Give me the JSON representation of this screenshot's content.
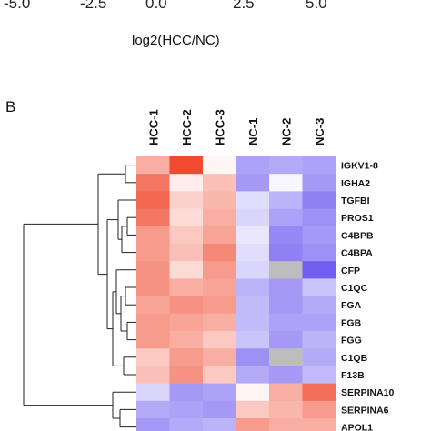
{
  "top_axis": {
    "ticks": [
      "-5.0",
      "-2.5",
      "0.0",
      "2.5",
      "5.0"
    ],
    "xlabel": "log2(HCC/NC)"
  },
  "panel_label": "B",
  "chart_data": {
    "type": "heatmap",
    "columns": [
      "HCC-1",
      "HCC-2",
      "HCC-3",
      "NC-1",
      "NC-2",
      "NC-3"
    ],
    "rows": [
      "IGKV1-8",
      "IGHA2",
      "TGFBI",
      "PROS1",
      "C4BPB",
      "C4BPA",
      "CFP",
      "C1QC",
      "FGA",
      "FGB",
      "FGG",
      "C1QB",
      "F13B",
      "SERPINA10",
      "SERPINA6",
      "APOL1"
    ],
    "values": [
      [
        0.45,
        1.0,
        0.05,
        -0.55,
        -0.5,
        -0.55
      ],
      [
        0.75,
        0.1,
        0.35,
        -0.6,
        -0.05,
        -0.6
      ],
      [
        0.85,
        0.25,
        0.4,
        -0.2,
        -0.45,
        -0.75
      ],
      [
        0.75,
        0.2,
        0.45,
        -0.25,
        -0.55,
        -0.65
      ],
      [
        0.55,
        0.3,
        0.5,
        -0.15,
        -0.7,
        -0.6
      ],
      [
        0.55,
        0.35,
        0.65,
        -0.2,
        -0.75,
        -0.65
      ],
      [
        0.6,
        0.2,
        0.55,
        -0.25,
        null,
        -0.95
      ],
      [
        0.6,
        0.45,
        0.5,
        -0.45,
        -0.6,
        -0.35
      ],
      [
        0.5,
        0.6,
        0.55,
        -0.4,
        -0.6,
        -0.5
      ],
      [
        0.55,
        0.5,
        0.45,
        -0.4,
        -0.55,
        -0.55
      ],
      [
        0.55,
        0.45,
        0.3,
        -0.35,
        -0.6,
        -0.45
      ],
      [
        0.3,
        0.55,
        0.45,
        -0.65,
        null,
        -0.5
      ],
      [
        0.35,
        0.6,
        0.3,
        -0.5,
        -0.6,
        -0.4
      ],
      [
        -0.25,
        -0.6,
        -0.55,
        0.05,
        0.45,
        0.8
      ],
      [
        -0.5,
        -0.55,
        -0.6,
        0.3,
        0.4,
        0.55
      ],
      [
        -0.6,
        -0.5,
        -0.45,
        0.55,
        0.45,
        0.45
      ]
    ],
    "value_range": [
      -1,
      1
    ],
    "missing": "grey",
    "colors": {
      "high": "#f04a30",
      "mid": "#ffffff",
      "low": "#6a55f0",
      "missing": "#bdbdbd"
    }
  }
}
